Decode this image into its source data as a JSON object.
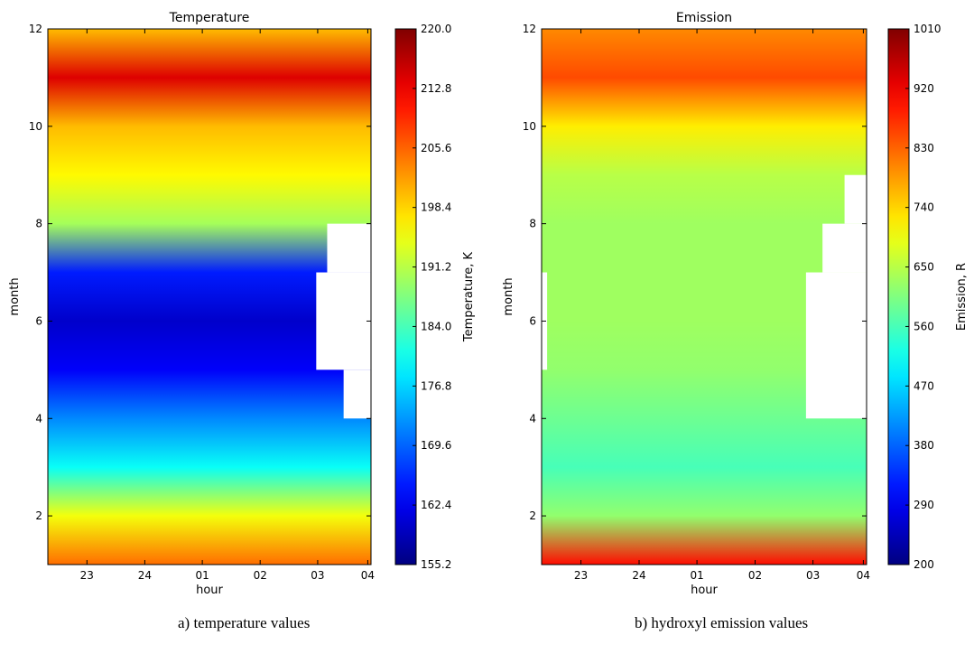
{
  "chart_data": [
    {
      "type": "heatmap",
      "title": "Temperature",
      "xlabel": "hour",
      "ylabel": "month",
      "x_ticks": [
        "23",
        "24",
        "01",
        "02",
        "03",
        "04"
      ],
      "y_ticks": [
        2,
        4,
        6,
        8,
        10,
        12
      ],
      "ylim": [
        1,
        12
      ],
      "colorbar": {
        "label": "Temperature, K",
        "ticks": [
          "220.0",
          "212.8",
          "205.6",
          "198.4",
          "191.2",
          "184.0",
          "176.8",
          "169.6",
          "162.4",
          "155.2"
        ],
        "range": [
          155.2,
          220.0
        ],
        "colormap": "jet"
      },
      "by_month": [
        {
          "month": 1,
          "value": 205
        },
        {
          "month": 2,
          "value": 195
        },
        {
          "month": 3,
          "value": 180
        },
        {
          "month": 4,
          "value": 172
        },
        {
          "month": 5,
          "value": 163
        },
        {
          "month": 6,
          "value": 160
        },
        {
          "month": 7,
          "value": 165
        },
        {
          "month": 8,
          "value": 190
        },
        {
          "month": 9,
          "value": 196
        },
        {
          "month": 10,
          "value": 200
        },
        {
          "month": 11,
          "value": 214
        },
        {
          "month": 12,
          "value": 200
        }
      ],
      "missing_regions": [
        {
          "hour_from": "03.5",
          "hour_to": "04.5",
          "month_from": 5,
          "month_to": 7
        },
        {
          "hour_from": "03.7",
          "hour_to": "04.5",
          "month_from": 7,
          "month_to": 8
        },
        {
          "hour_from": "04.0",
          "hour_to": "04.5",
          "month_from": 4,
          "month_to": 5
        }
      ]
    },
    {
      "type": "heatmap",
      "title": "Emission",
      "xlabel": "hour",
      "ylabel": "month",
      "x_ticks": [
        "23",
        "24",
        "01",
        "02",
        "03",
        "04"
      ],
      "y_ticks": [
        2,
        4,
        6,
        8,
        10,
        12
      ],
      "ylim": [
        1,
        12
      ],
      "colorbar": {
        "label": "Emission, R",
        "ticks": [
          "1010",
          "920",
          "830",
          "740",
          "650",
          "560",
          "470",
          "380",
          "290",
          "200"
        ],
        "range": [
          200,
          1010
        ],
        "colormap": "jet"
      },
      "by_month": [
        {
          "month": 1,
          "value": 900
        },
        {
          "month": 2,
          "value": 620
        },
        {
          "month": 3,
          "value": 560
        },
        {
          "month": 4,
          "value": 590
        },
        {
          "month": 5,
          "value": 620
        },
        {
          "month": 6,
          "value": 630
        },
        {
          "month": 7,
          "value": 630
        },
        {
          "month": 8,
          "value": 630
        },
        {
          "month": 9,
          "value": 650
        },
        {
          "month": 10,
          "value": 720
        },
        {
          "month": 11,
          "value": 850
        },
        {
          "month": 12,
          "value": 800
        }
      ],
      "missing_regions": [
        {
          "hour_from": "22.5",
          "hour_to": "22.7",
          "month_from": 5,
          "month_to": 7
        },
        {
          "hour_from": "03.4",
          "hour_to": "04.5",
          "month_from": 4,
          "month_to": 7
        },
        {
          "hour_from": "03.7",
          "hour_to": "04.5",
          "month_from": 7,
          "month_to": 8
        },
        {
          "hour_from": "04.1",
          "hour_to": "04.5",
          "month_from": 8,
          "month_to": 9
        }
      ]
    }
  ],
  "captions": {
    "a": "a) temperature values",
    "b": "b) hydroxyl emission values"
  }
}
